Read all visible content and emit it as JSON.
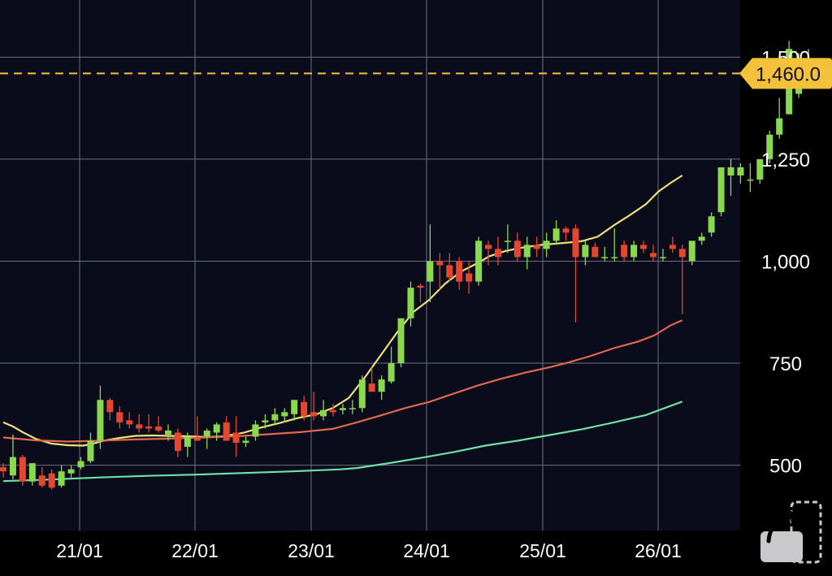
{
  "colors": {
    "background": "#0a0c1b",
    "axis_background": "#000000",
    "grid": "#6c6f7c",
    "up": "#8ad84d",
    "down": "#e5462f",
    "price_line": "#f4c13a",
    "price_tag_bg": "#f4c13a",
    "price_tag_text": "#111111",
    "axis_text": "#ffffff",
    "ma_short": "#ece178",
    "ma_mid": "#e2674c",
    "ma_long": "#6fe0a6"
  },
  "chart_data": {
    "type": "candlestick",
    "x_tick_labels": [
      "21/01",
      "22/01",
      "23/01",
      "24/01",
      "25/01",
      "26/01"
    ],
    "y_tick_labels": [
      "500",
      "750",
      "1,000",
      "1,250",
      "1,500"
    ],
    "y_ticks": [
      500,
      750,
      1000,
      1250,
      1500
    ],
    "ylim": [
      340,
      1640
    ],
    "grid": true,
    "current_price": 1460.0,
    "current_price_label": "1,460.0",
    "candles": [
      [
        495,
        505,
        470,
        485
      ],
      [
        475,
        575,
        465,
        520
      ],
      [
        520,
        525,
        450,
        460
      ],
      [
        460,
        500,
        450,
        505
      ],
      [
        475,
        495,
        445,
        450
      ],
      [
        480,
        490,
        440,
        445
      ],
      [
        450,
        500,
        445,
        485
      ],
      [
        480,
        500,
        470,
        490
      ],
      [
        495,
        520,
        490,
        510
      ],
      [
        510,
        580,
        505,
        560
      ],
      [
        560,
        695,
        540,
        660
      ],
      [
        660,
        665,
        610,
        630
      ],
      [
        630,
        645,
        590,
        605
      ],
      [
        610,
        630,
        590,
        600
      ],
      [
        600,
        625,
        580,
        590
      ],
      [
        595,
        625,
        580,
        590
      ],
      [
        595,
        620,
        580,
        585
      ],
      [
        575,
        600,
        560,
        585
      ],
      [
        580,
        590,
        520,
        535
      ],
      [
        545,
        580,
        520,
        570
      ],
      [
        565,
        620,
        560,
        560
      ],
      [
        570,
        590,
        540,
        585
      ],
      [
        580,
        605,
        560,
        600
      ],
      [
        605,
        620,
        560,
        560
      ],
      [
        580,
        620,
        520,
        555
      ],
      [
        555,
        570,
        545,
        560
      ],
      [
        570,
        610,
        560,
        600
      ],
      [
        605,
        625,
        590,
        610
      ],
      [
        610,
        640,
        600,
        625
      ],
      [
        620,
        640,
        605,
        630
      ],
      [
        625,
        660,
        610,
        660
      ],
      [
        655,
        670,
        610,
        620
      ],
      [
        630,
        680,
        610,
        620
      ],
      [
        620,
        660,
        610,
        635
      ],
      [
        635,
        650,
        620,
        630
      ],
      [
        635,
        650,
        625,
        640
      ],
      [
        640,
        660,
        625,
        640
      ],
      [
        640,
        720,
        630,
        710
      ],
      [
        700,
        740,
        680,
        680
      ],
      [
        680,
        720,
        660,
        710
      ],
      [
        705,
        790,
        700,
        750
      ],
      [
        750,
        860,
        740,
        860
      ],
      [
        860,
        950,
        840,
        935
      ],
      [
        940,
        945,
        900,
        935
      ],
      [
        950,
        1090,
        900,
        1000
      ],
      [
        1000,
        1020,
        930,
        990
      ],
      [
        990,
        1020,
        950,
        960
      ],
      [
        1000,
        1010,
        930,
        950
      ],
      [
        970,
        1000,
        920,
        950
      ],
      [
        950,
        1060,
        940,
        1050
      ],
      [
        1040,
        1050,
        990,
        1030
      ],
      [
        1030,
        1060,
        990,
        1010
      ],
      [
        1050,
        1090,
        1020,
        1050
      ],
      [
        1050,
        1070,
        1000,
        1010
      ],
      [
        1010,
        1060,
        980,
        1040
      ],
      [
        1040,
        1060,
        1010,
        1030
      ],
      [
        1030,
        1070,
        1010,
        1050
      ],
      [
        1050,
        1100,
        1040,
        1080
      ],
      [
        1080,
        1085,
        1050,
        1070
      ],
      [
        1080,
        1090,
        850,
        1010
      ],
      [
        1010,
        1050,
        990,
        1040
      ],
      [
        1035,
        1045,
        1010,
        1010
      ],
      [
        1010,
        1035,
        1000,
        1010
      ],
      [
        1010,
        1080,
        1000,
        1010
      ],
      [
        1040,
        1050,
        1000,
        1010
      ],
      [
        1010,
        1050,
        1000,
        1040
      ],
      [
        1040,
        1050,
        1020,
        1030
      ],
      [
        1020,
        1040,
        1000,
        1010
      ],
      [
        1010,
        1030,
        1000,
        1010
      ],
      [
        1040,
        1060,
        1020,
        1030
      ],
      [
        1030,
        1040,
        870,
        1010
      ],
      [
        1000,
        1040,
        990,
        1050
      ],
      [
        1050,
        1070,
        1040,
        1060
      ],
      [
        1070,
        1120,
        1060,
        1110
      ],
      [
        1120,
        1220,
        1110,
        1230
      ],
      [
        1210,
        1250,
        1160,
        1230
      ],
      [
        1210,
        1240,
        1190,
        1230
      ],
      [
        1200,
        1240,
        1170,
        1200
      ],
      [
        1200,
        1250,
        1190,
        1250
      ],
      [
        1250,
        1320,
        1240,
        1310
      ],
      [
        1310,
        1400,
        1300,
        1350
      ],
      [
        1360,
        1540,
        1360,
        1520
      ],
      [
        1410,
        1510,
        1400,
        1490
      ],
      [
        1440,
        1520,
        1430,
        1460
      ]
    ],
    "series": [
      {
        "values": [
          [
            0,
            605
          ],
          [
            12,
            595
          ],
          [
            25,
            580
          ],
          [
            40,
            565
          ],
          [
            60,
            553
          ],
          [
            80,
            549
          ],
          [
            100,
            548
          ],
          [
            110,
            552
          ],
          [
            125,
            560
          ],
          [
            145,
            567
          ],
          [
            165,
            572
          ],
          [
            185,
            573
          ],
          [
            205,
            572
          ],
          [
            230,
            571
          ],
          [
            255,
            569
          ],
          [
            275,
            571
          ],
          [
            300,
            580
          ],
          [
            320,
            592
          ],
          [
            345,
            604
          ],
          [
            365,
            615
          ],
          [
            390,
            625
          ],
          [
            410,
            640
          ],
          [
            430,
            665
          ],
          [
            450,
            715
          ],
          [
            470,
            770
          ],
          [
            490,
            825
          ],
          [
            510,
            875
          ],
          [
            530,
            905
          ],
          [
            550,
            945
          ],
          [
            570,
            975
          ],
          [
            590,
            995
          ],
          [
            605,
            1012
          ],
          [
            625,
            1025
          ],
          [
            645,
            1033
          ],
          [
            670,
            1040
          ],
          [
            700,
            1045
          ],
          [
            720,
            1049
          ],
          [
            740,
            1060
          ],
          [
            760,
            1088
          ],
          [
            780,
            1113
          ],
          [
            800,
            1140
          ],
          [
            815,
            1170
          ],
          [
            830,
            1191
          ],
          [
            845,
            1210
          ]
        ]
      },
      {
        "values": [
          [
            0,
            568
          ],
          [
            40,
            561
          ],
          [
            80,
            558
          ],
          [
            120,
            560
          ],
          [
            160,
            563
          ],
          [
            200,
            565
          ],
          [
            250,
            568
          ],
          [
            290,
            571
          ],
          [
            330,
            576
          ],
          [
            370,
            581
          ],
          [
            410,
            589
          ],
          [
            440,
            605
          ],
          [
            470,
            622
          ],
          [
            500,
            640
          ],
          [
            530,
            655
          ],
          [
            560,
            675
          ],
          [
            590,
            695
          ],
          [
            620,
            712
          ],
          [
            650,
            727
          ],
          [
            680,
            740
          ],
          [
            700,
            750
          ],
          [
            730,
            767
          ],
          [
            760,
            787
          ],
          [
            790,
            803
          ],
          [
            810,
            818
          ],
          [
            830,
            842
          ],
          [
            845,
            855
          ]
        ]
      },
      {
        "values": [
          [
            0,
            461
          ],
          [
            60,
            465
          ],
          [
            120,
            470
          ],
          [
            180,
            474
          ],
          [
            240,
            477
          ],
          [
            300,
            481
          ],
          [
            360,
            485
          ],
          [
            420,
            490
          ],
          [
            440,
            493
          ],
          [
            480,
            505
          ],
          [
            520,
            518
          ],
          [
            560,
            532
          ],
          [
            600,
            548
          ],
          [
            640,
            560
          ],
          [
            680,
            574
          ],
          [
            720,
            588
          ],
          [
            760,
            605
          ],
          [
            800,
            623
          ],
          [
            830,
            645
          ],
          [
            845,
            656
          ]
        ]
      }
    ]
  }
}
